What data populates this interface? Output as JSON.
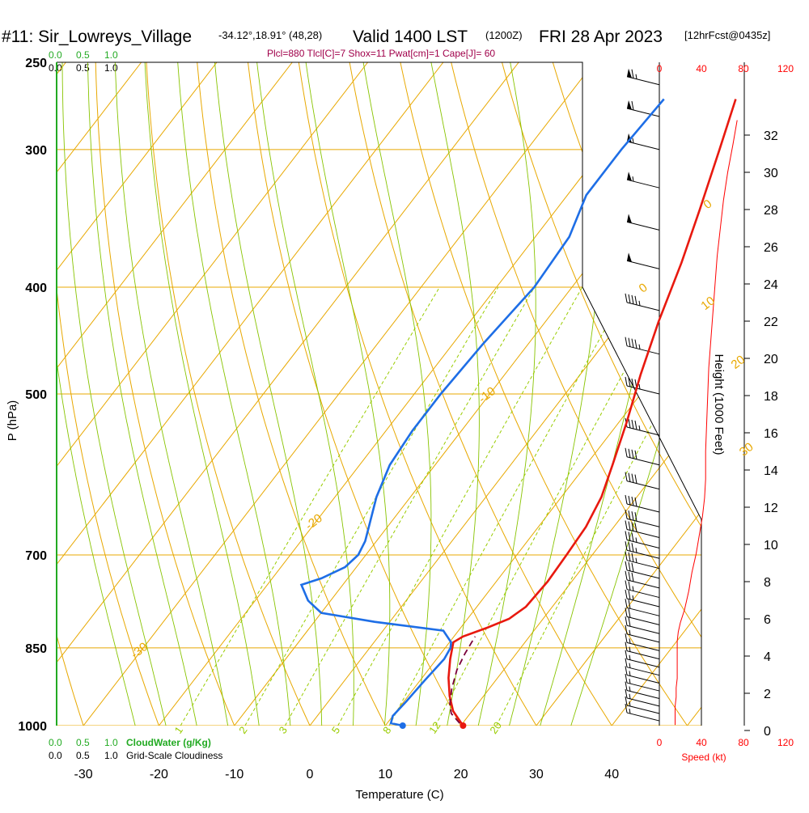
{
  "header": {
    "station": "#11: Sir_Lowreys_Village",
    "coords": "-34.12°,18.91° (48,28)",
    "valid": "Valid 1400 LST",
    "zulu": "(1200Z)",
    "date": "FRI 28 Apr 2023",
    "forecast": "[12hrFcst@0435z]"
  },
  "stats_line": "Plcl=880 Tlcl[C]=7 Shox=11 Pwat[cm]=1 Cape[J]= 60",
  "top_scales": {
    "cloudwater": [
      "0.0",
      "0.5",
      "1.0"
    ],
    "cloudiness": [
      "0.0",
      "0.5",
      "1.0"
    ]
  },
  "bottom_legend": {
    "cloudwater_ticks": [
      "0.0",
      "0.5",
      "1.0"
    ],
    "cloudwater_label": "CloudWater (g/Kg)",
    "cloudiness_ticks": [
      "0.0",
      "0.5",
      "1.0"
    ],
    "cloudiness_label": "Grid-Scale Cloudiness"
  },
  "colors": {
    "temperature": "#e8190f",
    "dewpoint": "#1e6ee6",
    "parcel": "#7a003a",
    "isotherm": "#e8a800",
    "dry_adiabat": "#e8a800",
    "moist_adiabat": "#88c400",
    "mixing_ratio": "#99cc00",
    "speed": "#ff0000",
    "cloudwater": "#22aa22"
  },
  "chart_data": {
    "type": "line",
    "title": "#11: Sir_Lowreys_Village Valid 1400 LST (1200Z) FRI 28 Apr 2023",
    "xlabel": "Temperature (C)",
    "ylabel": "P (hPa)",
    "right_label": "Height (1000 Feet)",
    "speed_label": "Speed (kt)",
    "xlim": [
      -35,
      44
    ],
    "ylim": [
      1010,
      250
    ],
    "x_ticks": [
      -30,
      -20,
      -10,
      0,
      10,
      20,
      30,
      40
    ],
    "pressure_ticks": [
      250,
      300,
      400,
      500,
      700,
      850,
      1000
    ],
    "height_ticks": [
      0,
      2,
      4,
      6,
      8,
      10,
      12,
      14,
      16,
      18,
      20,
      22,
      24,
      26,
      28,
      30,
      32
    ],
    "speed_ticks": [
      0,
      40,
      80,
      120
    ],
    "isotherm_labels": [
      {
        "t": 0,
        "p": 340,
        "text": "0"
      },
      {
        "t": 10,
        "p": 420,
        "text": "10"
      },
      {
        "t": 20,
        "p": 475,
        "text": "20"
      },
      {
        "t": 30,
        "p": 570,
        "text": "30"
      },
      {
        "t": -10,
        "p": 510,
        "text": "-10"
      },
      {
        "t": -20,
        "p": 665,
        "text": "-20"
      },
      {
        "t": -30,
        "p": 870,
        "text": "-30"
      },
      {
        "t": 10,
        "p": 300,
        "text": "-10"
      },
      {
        "t": 0,
        "p": 405,
        "text": "0"
      }
    ],
    "mixing_ratio_labels": [
      "1",
      "2",
      "3",
      "5",
      "8",
      "12",
      "20"
    ],
    "mixing_ratio_values": [
      1,
      2,
      3,
      5,
      8,
      12,
      20
    ],
    "series": [
      {
        "name": "Temperature",
        "points": [
          [
            20.3,
            1000
          ],
          [
            17.5,
            970
          ],
          [
            15.5,
            940
          ],
          [
            13.5,
            905
          ],
          [
            11.8,
            870
          ],
          [
            10.5,
            840
          ],
          [
            11.2,
            830
          ],
          [
            13.5,
            815
          ],
          [
            15.5,
            800
          ],
          [
            16.5,
            780
          ],
          [
            16.8,
            740
          ],
          [
            16.6,
            700
          ],
          [
            16.3,
            660
          ],
          [
            15.3,
            620
          ],
          [
            13.5,
            580
          ],
          [
            11,
            530
          ],
          [
            8,
            480
          ],
          [
            5,
            430
          ],
          [
            2,
            380
          ],
          [
            -1,
            340
          ],
          [
            -4.5,
            300
          ],
          [
            -7.5,
            270
          ]
        ]
      },
      {
        "name": "Dewpoint",
        "points": [
          [
            12.3,
            1000
          ],
          [
            10.5,
            995
          ],
          [
            10,
            980
          ],
          [
            10.3,
            950
          ],
          [
            10.6,
            910
          ],
          [
            11,
            870
          ],
          [
            10.7,
            850
          ],
          [
            10.2,
            840
          ],
          [
            8,
            820
          ],
          [
            -2,
            805
          ],
          [
            -10,
            790
          ],
          [
            -13,
            770
          ],
          [
            -15.5,
            745
          ],
          [
            -13.5,
            735
          ],
          [
            -11.5,
            718
          ],
          [
            -11,
            700
          ],
          [
            -11.5,
            680
          ],
          [
            -14.5,
            620
          ],
          [
            -16,
            580
          ],
          [
            -16.5,
            540
          ],
          [
            -16.5,
            500
          ],
          [
            -16,
            450
          ],
          [
            -15,
            400
          ],
          [
            -15.5,
            360
          ],
          [
            -17.5,
            330
          ],
          [
            -17.5,
            300
          ],
          [
            -17,
            270
          ]
        ]
      },
      {
        "name": "Parcel",
        "points": [
          [
            19.6,
            995
          ],
          [
            17.5,
            975
          ],
          [
            16.3,
            955
          ],
          [
            15,
            925
          ],
          [
            13.8,
            890
          ],
          [
            13.2,
            860
          ],
          [
            12.8,
            830
          ]
        ]
      }
    ],
    "surface_dewpoint_marker": {
      "t": 12.3,
      "p": 1000
    },
    "surface_temp_marker": {
      "t": 20.3,
      "p": 1000
    },
    "wind_profile": [
      {
        "h": 0.3,
        "spd": 15
      },
      {
        "h": 0.8,
        "spd": 15
      },
      {
        "h": 1.3,
        "spd": 15
      },
      {
        "h": 1.8,
        "spd": 16
      },
      {
        "h": 2.3,
        "spd": 16
      },
      {
        "h": 2.8,
        "spd": 17
      },
      {
        "h": 3.3,
        "spd": 17
      },
      {
        "h": 3.8,
        "spd": 17
      },
      {
        "h": 4.3,
        "spd": 17
      },
      {
        "h": 4.8,
        "spd": 17
      },
      {
        "h": 5.3,
        "spd": 18
      },
      {
        "h": 5.8,
        "spd": 20
      },
      {
        "h": 6.5,
        "spd": 24
      },
      {
        "h": 7.5,
        "spd": 28
      },
      {
        "h": 8.5,
        "spd": 31
      },
      {
        "h": 9.5,
        "spd": 35
      },
      {
        "h": 10.5,
        "spd": 38
      },
      {
        "h": 11.5,
        "spd": 41
      },
      {
        "h": 12.5,
        "spd": 43
      },
      {
        "h": 13.5,
        "spd": 44
      },
      {
        "h": 15,
        "spd": 44
      },
      {
        "h": 16.5,
        "spd": 45
      },
      {
        "h": 18,
        "spd": 46
      },
      {
        "h": 19.5,
        "spd": 47
      },
      {
        "h": 21,
        "spd": 49
      },
      {
        "h": 22.5,
        "spd": 51
      },
      {
        "h": 24,
        "spd": 53
      },
      {
        "h": 25.5,
        "spd": 55
      },
      {
        "h": 27,
        "spd": 58
      },
      {
        "h": 28.5,
        "spd": 61
      },
      {
        "h": 30,
        "spd": 65
      },
      {
        "h": 31.5,
        "spd": 70
      },
      {
        "h": 32.8,
        "spd": 74
      }
    ],
    "wind_barbs": [
      {
        "p": 990,
        "spd": 15
      },
      {
        "p": 975,
        "spd": 15
      },
      {
        "p": 960,
        "spd": 15
      },
      {
        "p": 945,
        "spd": 16
      },
      {
        "p": 930,
        "spd": 16
      },
      {
        "p": 915,
        "spd": 17
      },
      {
        "p": 900,
        "spd": 17
      },
      {
        "p": 885,
        "spd": 17
      },
      {
        "p": 870,
        "spd": 17
      },
      {
        "p": 855,
        "spd": 17
      },
      {
        "p": 840,
        "spd": 18
      },
      {
        "p": 825,
        "spd": 20
      },
      {
        "p": 810,
        "spd": 22
      },
      {
        "p": 795,
        "spd": 24
      },
      {
        "p": 780,
        "spd": 27
      },
      {
        "p": 765,
        "spd": 29
      },
      {
        "p": 750,
        "spd": 31
      },
      {
        "p": 735,
        "spd": 33
      },
      {
        "p": 720,
        "spd": 35
      },
      {
        "p": 705,
        "spd": 37
      },
      {
        "p": 690,
        "spd": 38
      },
      {
        "p": 675,
        "spd": 40
      },
      {
        "p": 660,
        "spd": 41
      },
      {
        "p": 640,
        "spd": 43
      },
      {
        "p": 610,
        "spd": 44
      },
      {
        "p": 580,
        "spd": 44
      },
      {
        "p": 545,
        "spd": 45
      },
      {
        "p": 500,
        "spd": 46
      },
      {
        "p": 460,
        "spd": 47
      },
      {
        "p": 420,
        "spd": 49
      },
      {
        "p": 385,
        "spd": 51
      },
      {
        "p": 355,
        "spd": 53
      },
      {
        "p": 325,
        "spd": 56
      },
      {
        "p": 300,
        "spd": 58
      },
      {
        "p": 280,
        "spd": 62
      },
      {
        "p": 262,
        "spd": 66
      }
    ]
  }
}
